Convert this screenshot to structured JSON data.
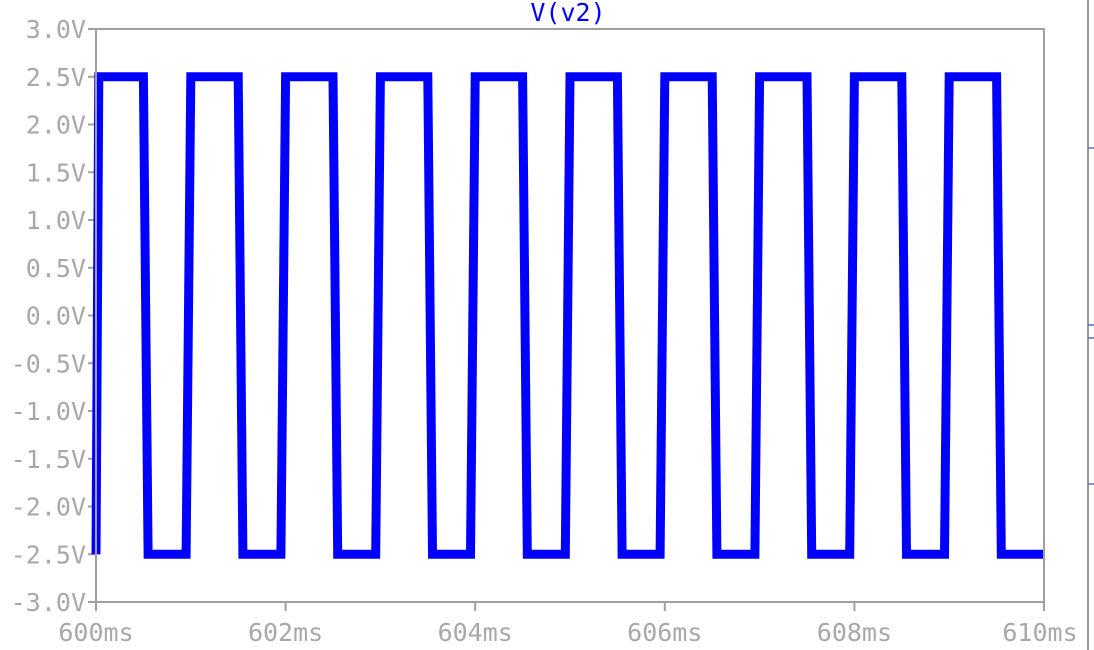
{
  "chart_data": {
    "type": "line",
    "title": "V(v2)",
    "title_color": "#0000ff",
    "series_color": "#0000ff",
    "axis_color": "#a0a0a0",
    "xlim": [
      600,
      610
    ],
    "ylim": [
      -3.0,
      3.0
    ],
    "x_ticks": [
      600,
      602,
      604,
      606,
      608,
      610
    ],
    "x_tick_labels": [
      "600ms",
      "602ms",
      "604ms",
      "606ms",
      "608ms",
      "610ms"
    ],
    "y_ticks": [
      3.0,
      2.5,
      2.0,
      1.5,
      1.0,
      0.5,
      0.0,
      -0.5,
      -1.0,
      -1.5,
      -2.0,
      -2.5,
      -3.0
    ],
    "y_tick_labels": [
      "3.0V",
      "2.5V",
      "2.0V",
      "1.5V",
      "1.0V",
      "0.5V",
      "0.0V",
      "-0.5V",
      "-1.0V",
      "-1.5V",
      "-2.0V",
      "-2.5V",
      "-3.0V"
    ],
    "grid": false,
    "series": [
      {
        "name": "V(v2)",
        "x": [
          600.0,
          600.03,
          600.5,
          600.55,
          600.95,
          601.0,
          601.5,
          601.55,
          601.95,
          602.0,
          602.5,
          602.55,
          602.95,
          603.0,
          603.5,
          603.55,
          603.95,
          604.0,
          604.5,
          604.55,
          604.95,
          605.0,
          605.5,
          605.55,
          605.95,
          606.0,
          606.5,
          606.55,
          606.95,
          607.0,
          607.5,
          607.55,
          607.95,
          608.0,
          608.5,
          608.55,
          608.95,
          609.0,
          609.5,
          609.55,
          610.0
        ],
        "y": [
          -2.5,
          2.5,
          2.5,
          -2.5,
          -2.5,
          2.5,
          2.5,
          -2.5,
          -2.5,
          2.5,
          2.5,
          -2.5,
          -2.5,
          2.5,
          2.5,
          -2.5,
          -2.5,
          2.5,
          2.5,
          -2.5,
          -2.5,
          2.5,
          2.5,
          -2.5,
          -2.5,
          2.5,
          2.5,
          -2.5,
          -2.5,
          2.5,
          2.5,
          -2.5,
          -2.5,
          2.5,
          2.5,
          -2.5,
          -2.5,
          2.5,
          2.5,
          -2.5,
          -2.5
        ]
      }
    ]
  }
}
